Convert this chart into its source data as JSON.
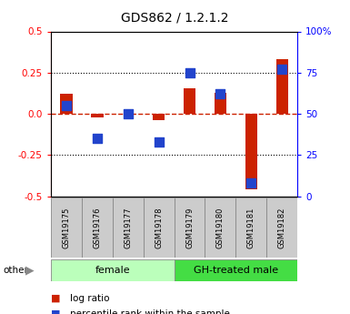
{
  "title": "GDS862 / 1.2.1.2",
  "samples": [
    "GSM19175",
    "GSM19176",
    "GSM19177",
    "GSM19178",
    "GSM19179",
    "GSM19180",
    "GSM19181",
    "GSM19182"
  ],
  "log_ratio": [
    0.12,
    -0.02,
    0.0,
    -0.04,
    0.155,
    0.13,
    -0.46,
    0.33
  ],
  "percentile_rank": [
    55,
    35,
    50,
    33,
    75,
    62,
    8,
    77
  ],
  "groups": [
    {
      "label": "female",
      "start": 0,
      "end": 4,
      "color": "#bbffbb"
    },
    {
      "label": "GH-treated male",
      "start": 4,
      "end": 8,
      "color": "#44dd44"
    }
  ],
  "ylim_left": [
    -0.5,
    0.5
  ],
  "ylim_right": [
    0,
    100
  ],
  "yticks_left": [
    -0.5,
    -0.25,
    0.0,
    0.25,
    0.5
  ],
  "yticks_right": [
    0,
    25,
    50,
    75,
    100
  ],
  "ytick_labels_right": [
    "0",
    "25",
    "50",
    "75",
    "100%"
  ],
  "hlines_dotted": [
    0.25,
    -0.25
  ],
  "zero_line_color": "#cc2200",
  "bar_color": "#cc2200",
  "dot_color": "#2244cc",
  "sample_box_color": "#cccccc",
  "bar_width": 0.4,
  "dot_size": 55
}
